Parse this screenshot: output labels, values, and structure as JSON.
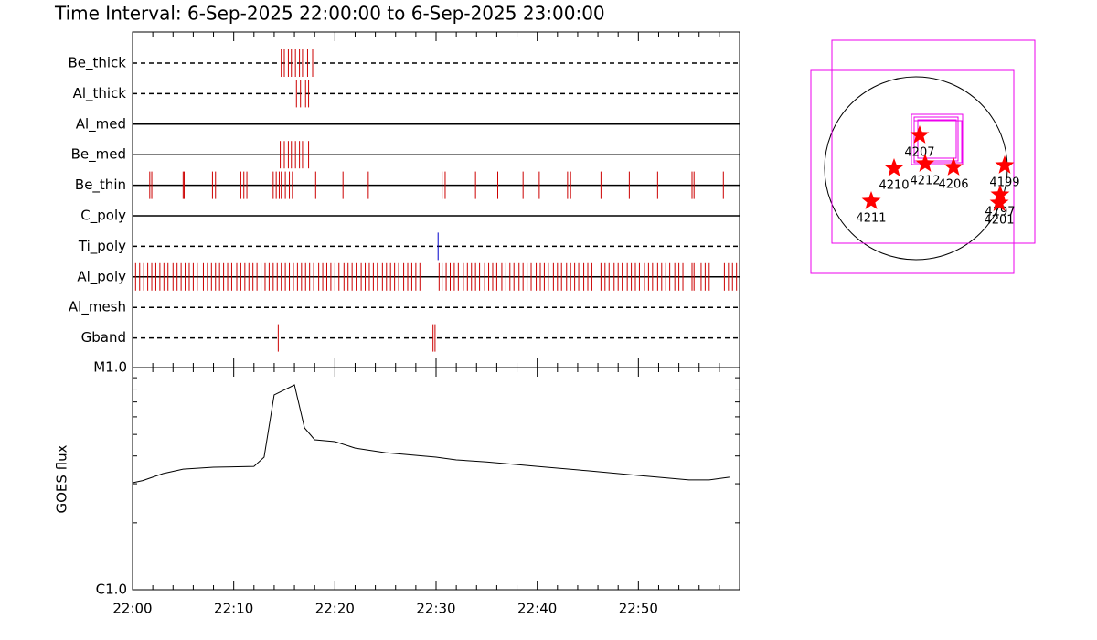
{
  "chart_data": [
    {
      "type": "event",
      "title": "Time Interval:  6-Sep-2025 22:00:00 to  6-Sep-2025 23:00:00",
      "xlim": [
        0,
        60
      ],
      "rows": [
        {
          "name": "Be_thick",
          "style": "dashed",
          "color": "#cc0000",
          "values": [
            14.7,
            15.0,
            15.4,
            15.7,
            16.1,
            16.5,
            16.8,
            17.3,
            17.8
          ]
        },
        {
          "name": "Al_thick",
          "style": "dashed",
          "color": "#cc0000",
          "values": [
            16.2,
            16.6,
            17.1,
            17.4
          ]
        },
        {
          "name": "Al_med",
          "style": "solid",
          "color": "#cc0000",
          "values": []
        },
        {
          "name": "Be_med",
          "style": "solid",
          "color": "#cc0000",
          "values": [
            14.6,
            15.0,
            15.4,
            15.7,
            16.1,
            16.5,
            16.8,
            17.4
          ]
        },
        {
          "name": "Be_thin",
          "style": "solid",
          "color": "#cc0000",
          "values": [
            1.7,
            1.9,
            5.0,
            5.1,
            7.9,
            8.2,
            10.7,
            11.0,
            11.3,
            13.9,
            14.2,
            14.5,
            14.7,
            15.1,
            15.5,
            15.8,
            18.1,
            20.8,
            23.3,
            30.6,
            30.9,
            33.9,
            36.1,
            38.6,
            40.2,
            43.0,
            43.3,
            46.3,
            49.1,
            51.9,
            55.3,
            55.5,
            58.4
          ]
        },
        {
          "name": "C_poly",
          "style": "solid",
          "color": "#cc0000",
          "values": []
        },
        {
          "name": "Ti_poly",
          "style": "dashed",
          "color": "#0000cc",
          "values": [
            30.2
          ]
        },
        {
          "name": "Al_poly",
          "style": "solid",
          "color": "#cc0000",
          "values": [
            0.3,
            0.7,
            1.1,
            1.5,
            1.9,
            2.3,
            2.7,
            3.1,
            3.5,
            4.0,
            4.4,
            4.8,
            5.2,
            5.6,
            6.0,
            6.4,
            7.0,
            7.4,
            7.8,
            8.2,
            8.6,
            9.0,
            9.4,
            9.8,
            10.3,
            10.7,
            11.1,
            11.5,
            11.9,
            12.3,
            12.7,
            13.1,
            13.5,
            13.9,
            14.3,
            14.7,
            15.1,
            15.5,
            15.9,
            16.3,
            16.7,
            17.1,
            17.5,
            17.9,
            18.4,
            18.8,
            19.2,
            19.6,
            20.0,
            20.4,
            20.9,
            21.3,
            21.7,
            22.1,
            22.6,
            23.0,
            23.4,
            23.8,
            24.2,
            24.7,
            25.1,
            25.5,
            25.9,
            26.3,
            26.8,
            27.2,
            27.6,
            28.0,
            28.4,
            30.3,
            30.6,
            31.0,
            31.4,
            31.8,
            32.2,
            32.7,
            33.1,
            33.5,
            33.9,
            34.3,
            34.8,
            35.2,
            35.6,
            36.0,
            36.5,
            36.9,
            37.3,
            37.7,
            38.2,
            38.6,
            39.0,
            39.4,
            39.9,
            40.3,
            40.7,
            41.1,
            41.6,
            42.0,
            42.4,
            42.9,
            43.3,
            43.7,
            44.1,
            44.6,
            45.0,
            45.4,
            46.3,
            46.7,
            47.1,
            47.6,
            48.0,
            48.4,
            48.9,
            49.3,
            49.7,
            50.1,
            50.6,
            51.0,
            51.4,
            51.9,
            52.3,
            52.7,
            53.1,
            53.6,
            54.0,
            54.4,
            55.3,
            55.5,
            56.2,
            56.6,
            57.0,
            58.5,
            58.9,
            59.3,
            59.7
          ]
        },
        {
          "name": "Al_mesh",
          "style": "dashed",
          "color": "#cc0000",
          "values": []
        },
        {
          "name": "Gband",
          "style": "dashed",
          "color": "#cc0000",
          "values": [
            14.4,
            29.7,
            29.9
          ]
        }
      ]
    },
    {
      "type": "line",
      "ylabel": "GOES flux",
      "log": true,
      "color": "#000000",
      "x": [
        0,
        1,
        3,
        5,
        8,
        12,
        13,
        14,
        16,
        17,
        18,
        20,
        22,
        25,
        30,
        32,
        35,
        40,
        45,
        50,
        55,
        57,
        59
      ],
      "values": [
        3.03e-06,
        3.1e-06,
        3.33e-06,
        3.49e-06,
        3.56e-06,
        3.59e-06,
        3.95e-06,
        7.53e-06,
        8.35e-06,
        5.35e-06,
        4.73e-06,
        4.64e-06,
        4.34e-06,
        4.14e-06,
        3.95e-06,
        3.84e-06,
        3.76e-06,
        3.59e-06,
        3.43e-06,
        3.27e-06,
        3.12e-06,
        3.12e-06,
        3.21e-06
      ],
      "xlim": [
        0,
        60
      ],
      "xticks": [
        {
          "value": 0,
          "label": "22:00"
        },
        {
          "value": 10,
          "label": "22:10"
        },
        {
          "value": 20,
          "label": "22:20"
        },
        {
          "value": 30,
          "label": "22:30"
        },
        {
          "value": 40,
          "label": "22:40"
        },
        {
          "value": 50,
          "label": "22:50"
        }
      ],
      "xticks_minor": [
        2,
        4,
        6,
        8,
        12,
        14,
        16,
        18,
        22,
        24,
        26,
        28,
        32,
        34,
        36,
        38,
        42,
        44,
        46,
        48,
        52,
        54,
        56,
        58
      ],
      "ylim": [
        1e-06,
        1e-05
      ],
      "yticks": [
        {
          "value": 1e-06,
          "label": "C1.0"
        },
        {
          "value": 1e-05,
          "label": "M1.0"
        }
      ],
      "yticks_minor": [
        2e-06,
        3e-06,
        4e-06,
        5e-06,
        6e-06,
        7e-06,
        8e-06,
        9e-06
      ]
    },
    {
      "type": "scatter",
      "color": "#ff0000",
      "labels": [
        "4207",
        "4210",
        "4212",
        "4206",
        "4199",
        "4211",
        "4197",
        "4201"
      ],
      "x": [
        38,
        -230,
        96,
        394,
        931,
        -470,
        883,
        874
      ],
      "y": [
        346,
        0,
        48,
        10,
        29,
        -346,
        -278,
        -365
      ]
    }
  ]
}
